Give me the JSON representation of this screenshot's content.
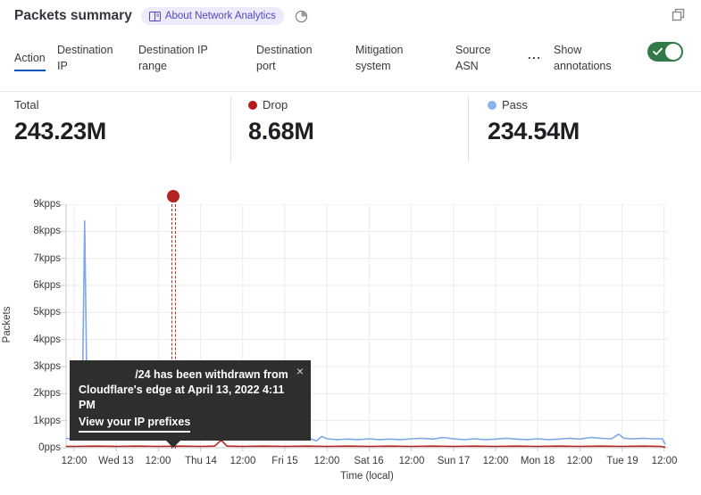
{
  "header": {
    "title": "Packets summary",
    "about_badge": "About Network Analytics",
    "icons": {
      "badge": "book-icon",
      "time_window": "pie-clock-icon",
      "top_right": "expand-icon"
    }
  },
  "tabs": {
    "items": [
      "Action",
      "Destination IP",
      "Destination IP range",
      "Destination port",
      "Mitigation system",
      "Source ASN",
      "..."
    ],
    "active": "Action",
    "show_annotations_label": "Show annotations",
    "annotations_enabled": true
  },
  "stats": {
    "items": [
      {
        "label": "Total",
        "value": "243.23M",
        "dot_color": ""
      },
      {
        "label": "Drop",
        "value": "8.68M",
        "dot_color": "#b21c1c"
      },
      {
        "label": "Pass",
        "value": "234.54M",
        "dot_color": "#8ab2ec"
      }
    ]
  },
  "annotation_tooltip": {
    "message_line1": "/24 has been withdrawn from",
    "message_line2": "Cloudflare's edge at April 13, 2022 4:11 PM",
    "link_label": "View your IP prefixes",
    "close_icon": "×"
  },
  "colors": {
    "accent_blue": "#0051c3",
    "toggle_green": "#317a48",
    "drop_red": "#b22424",
    "pass_blue": "#7fa8e8",
    "annotation_red": "#b42222",
    "badge_purple": "#5148c9"
  },
  "chart_data": {
    "type": "line",
    "ylabel": "Packets",
    "xlabel": "Time (local)",
    "y_ticks": [
      "0pps",
      "1kpps",
      "2kpps",
      "3kpps",
      "4kpps",
      "5kpps",
      "6kpps",
      "7kpps",
      "8kpps",
      "9kpps"
    ],
    "y_max_kpps": 9,
    "x_tick_labels": [
      "12:00",
      "Wed 13",
      "12:00",
      "Thu 14",
      "12:00",
      "Fri 15",
      "12:00",
      "Sat 16",
      "12:00",
      "Sun 17",
      "12:00",
      "Mon 18",
      "12:00",
      "Tue 19",
      "12:00"
    ],
    "hours_per_tick": 12,
    "series": [
      {
        "name": "Pass",
        "color": "#7fa8e8",
        "points": [
          [
            -2.3,
            0.35
          ],
          [
            0,
            0.32
          ],
          [
            1.5,
            0.4
          ],
          [
            2.2,
            0.45
          ],
          [
            3,
            8.38
          ],
          [
            3.7,
            1.4
          ],
          [
            4.3,
            0.6
          ],
          [
            5.5,
            0.42
          ],
          [
            7,
            0.36
          ],
          [
            9,
            0.33
          ],
          [
            12,
            0.3
          ],
          [
            15,
            0.32
          ],
          [
            18,
            0.35
          ],
          [
            19,
            0.55
          ],
          [
            20,
            0.35
          ],
          [
            23,
            0.3
          ],
          [
            26,
            0.32
          ],
          [
            28,
            0.33
          ],
          [
            31,
            0.3
          ],
          [
            34,
            0.32
          ],
          [
            37,
            0.3
          ],
          [
            40,
            0.35
          ],
          [
            43,
            0.32
          ],
          [
            44.5,
            0.42
          ],
          [
            46,
            0.33
          ],
          [
            49,
            0.3
          ],
          [
            52,
            0.32
          ],
          [
            55,
            0.3
          ],
          [
            58,
            0.33
          ],
          [
            61,
            0.3
          ],
          [
            64,
            0.32
          ],
          [
            67,
            0.35
          ],
          [
            69,
            0.25
          ],
          [
            70.5,
            0.42
          ],
          [
            72,
            0.33
          ],
          [
            75,
            0.3
          ],
          [
            78,
            0.32
          ],
          [
            81,
            0.3
          ],
          [
            84,
            0.33
          ],
          [
            87,
            0.3
          ],
          [
            90,
            0.32
          ],
          [
            93,
            0.3
          ],
          [
            96,
            0.33
          ],
          [
            99,
            0.35
          ],
          [
            102,
            0.32
          ],
          [
            105,
            0.38
          ],
          [
            108,
            0.33
          ],
          [
            111,
            0.3
          ],
          [
            114,
            0.33
          ],
          [
            117,
            0.3
          ],
          [
            120,
            0.32
          ],
          [
            123,
            0.35
          ],
          [
            126,
            0.32
          ],
          [
            129,
            0.3
          ],
          [
            132,
            0.33
          ],
          [
            135,
            0.3
          ],
          [
            138,
            0.32
          ],
          [
            141,
            0.35
          ],
          [
            144,
            0.32
          ],
          [
            147,
            0.38
          ],
          [
            150,
            0.35
          ],
          [
            153,
            0.33
          ],
          [
            155,
            0.5
          ],
          [
            156.5,
            0.35
          ],
          [
            159,
            0.33
          ],
          [
            162,
            0.35
          ],
          [
            165,
            0.33
          ],
          [
            167.5,
            0.33
          ],
          [
            168.3,
            0.12
          ]
        ]
      },
      {
        "name": "Drop",
        "color": "#b22424",
        "points": [
          [
            -2.3,
            0.05
          ],
          [
            0,
            0.05
          ],
          [
            6,
            0.06
          ],
          [
            12,
            0.05
          ],
          [
            18,
            0.06
          ],
          [
            24,
            0.05
          ],
          [
            30,
            0.06
          ],
          [
            36,
            0.05
          ],
          [
            40,
            0.06
          ],
          [
            41.9,
            0.28
          ],
          [
            43.5,
            0.06
          ],
          [
            48,
            0.05
          ],
          [
            54,
            0.06
          ],
          [
            60,
            0.05
          ],
          [
            66,
            0.06
          ],
          [
            72,
            0.05
          ],
          [
            78,
            0.06
          ],
          [
            84,
            0.05
          ],
          [
            90,
            0.06
          ],
          [
            96,
            0.05
          ],
          [
            102,
            0.06
          ],
          [
            108,
            0.05
          ],
          [
            114,
            0.06
          ],
          [
            120,
            0.05
          ],
          [
            126,
            0.06
          ],
          [
            132,
            0.05
          ],
          [
            138,
            0.06
          ],
          [
            144,
            0.05
          ],
          [
            150,
            0.06
          ],
          [
            156,
            0.05
          ],
          [
            162,
            0.06
          ],
          [
            167,
            0.05
          ],
          [
            168.3,
            0.02
          ]
        ]
      }
    ],
    "annotation": {
      "x_hours": 28.2,
      "time": "April 13, 2022 4:11 PM",
      "color": "#b42222"
    }
  }
}
